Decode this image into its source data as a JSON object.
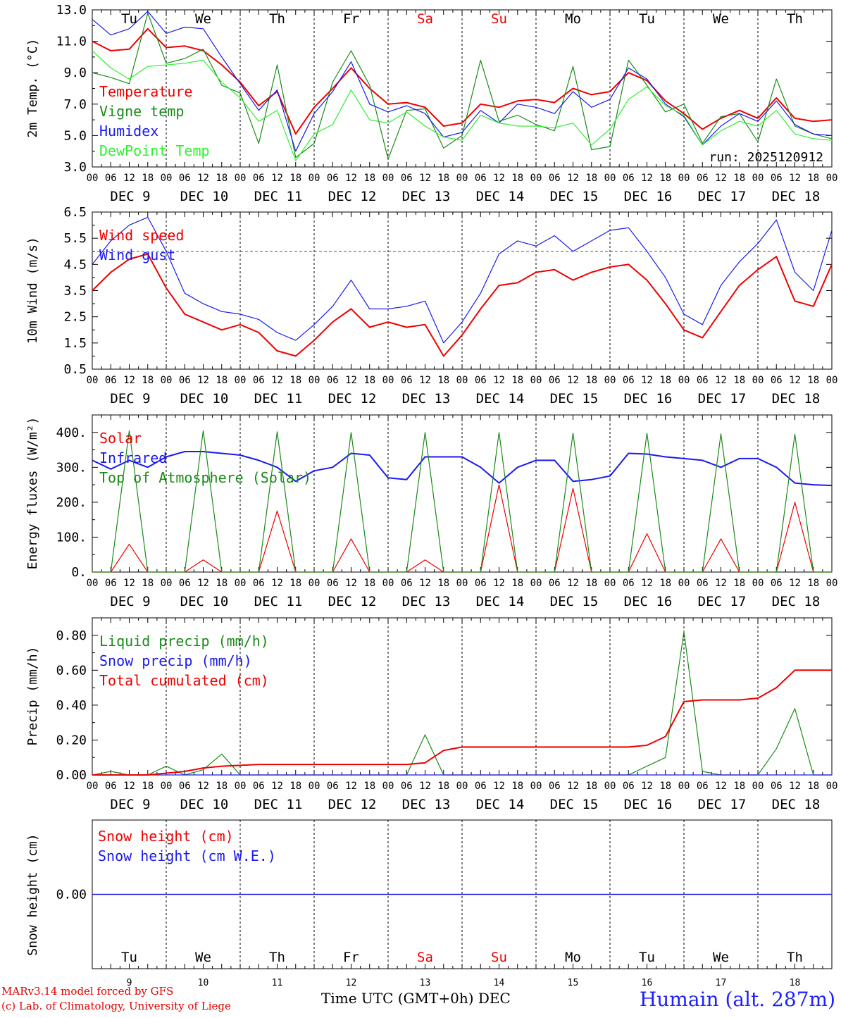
{
  "run_label": "run: 2025120912",
  "day_abbrs": [
    "Tu",
    "We",
    "Th",
    "Fr",
    "Sa",
    "Su",
    "Mo",
    "Tu",
    "We",
    "Th"
  ],
  "weekend_days": [
    4,
    5
  ],
  "hour_ticks": [
    "00",
    "06",
    "12",
    "18"
  ],
  "end_hour_tick": "00",
  "dates": [
    "DEC 9",
    "DEC 10",
    "DEC 11",
    "DEC 12",
    "DEC 13",
    "DEC 14",
    "DEC 15",
    "DEC 16",
    "DEC 17",
    "DEC 18"
  ],
  "date_numbers": [
    "9",
    "10",
    "11",
    "12",
    "13",
    "14",
    "15",
    "16",
    "17",
    "18"
  ],
  "xaxis_title": "Time UTC (GMT+0h)",
  "xaxis_month": "DEC",
  "credit_line1": "MARv3.14 model forced by GFS",
  "credit_line2": "(c) Lab. of Climatology, University of Liege",
  "station": "Humain (alt. 287m)",
  "colors": {
    "red": "#ee0000",
    "green": "#1a8a1a",
    "blue": "#1a1aee",
    "lightgreen": "#33ee33",
    "weekend": "#ee0000"
  },
  "chart_data": [
    {
      "type": "line",
      "ylabel": "2m Temp. (°C)",
      "ylim": [
        3,
        13
      ],
      "yticks": [
        "3.0",
        "5.0",
        "7.0",
        "9.0",
        "11.0",
        "13.0"
      ],
      "x_hours": [
        0,
        6,
        12,
        18,
        24,
        30,
        36,
        42,
        48,
        54,
        60,
        66,
        72,
        78,
        84,
        90,
        96,
        102,
        108,
        114,
        120,
        126,
        132,
        138,
        144,
        150,
        156,
        162,
        168,
        174,
        180,
        186,
        192,
        198,
        204,
        210,
        216,
        222,
        228,
        234,
        240
      ],
      "series": [
        {
          "name": "Temperature",
          "color": "red",
          "values": [
            11.0,
            10.4,
            10.5,
            11.8,
            10.6,
            10.7,
            10.4,
            9.5,
            8.4,
            6.9,
            7.8,
            5.1,
            6.8,
            8.0,
            9.3,
            8.0,
            7.0,
            7.1,
            6.8,
            5.6,
            5.8,
            7.0,
            6.8,
            7.2,
            7.3,
            7.1,
            8.0,
            7.6,
            7.8,
            9.0,
            8.5,
            7.2,
            6.4,
            5.4,
            6.1,
            6.6,
            6.1,
            7.4,
            6.1,
            5.9,
            6.0
          ]
        },
        {
          "name": "Vigne temp",
          "color": "green",
          "values": [
            9.0,
            8.7,
            8.3,
            12.8,
            9.6,
            9.9,
            10.5,
            8.2,
            7.7,
            4.5,
            9.5,
            3.6,
            4.5,
            8.4,
            10.4,
            8.2,
            3.5,
            6.6,
            6.7,
            4.2,
            5.0,
            9.8,
            5.9,
            6.3,
            5.7,
            5.3,
            9.4,
            4.1,
            4.3,
            9.8,
            8.2,
            6.5,
            7.0,
            4.5,
            6.2,
            6.4,
            4.6,
            8.6,
            5.6,
            5.1,
            4.8
          ]
        },
        {
          "name": "Humidex",
          "color": "blue",
          "values": [
            12.4,
            11.4,
            11.8,
            12.9,
            11.5,
            11.9,
            11.8,
            10.0,
            8.3,
            6.6,
            7.9,
            4.0,
            6.4,
            7.8,
            9.7,
            7.0,
            6.5,
            6.9,
            6.4,
            4.9,
            5.2,
            6.6,
            5.8,
            7.0,
            6.8,
            6.4,
            7.8,
            6.8,
            7.3,
            9.3,
            8.6,
            7.0,
            6.2,
            4.4,
            5.6,
            6.4,
            5.9,
            7.2,
            5.7,
            5.1,
            5.0
          ]
        },
        {
          "name": "DewPoint Temp",
          "color": "lightgreen",
          "values": [
            10.4,
            9.3,
            8.6,
            9.4,
            9.5,
            9.6,
            9.8,
            8.4,
            7.4,
            5.9,
            6.6,
            3.4,
            5.1,
            5.7,
            7.9,
            6.0,
            5.8,
            6.5,
            5.6,
            4.9,
            4.7,
            6.3,
            5.8,
            5.6,
            5.6,
            5.5,
            5.8,
            4.4,
            5.4,
            7.3,
            8.1,
            6.9,
            6.3,
            4.4,
            5.3,
            5.9,
            5.6,
            6.6,
            5.1,
            4.8,
            4.7
          ]
        }
      ]
    },
    {
      "type": "line",
      "ylabel": "10m Wind (m/s)",
      "ylim": [
        0.5,
        6.5
      ],
      "yticks": [
        "0.5",
        "1.5",
        "2.5",
        "3.5",
        "4.5",
        "5.5",
        "6.5"
      ],
      "reference_line": 5.0,
      "x_hours": [
        0,
        6,
        12,
        18,
        24,
        30,
        36,
        42,
        48,
        54,
        60,
        66,
        72,
        78,
        84,
        90,
        96,
        102,
        108,
        114,
        120,
        126,
        132,
        138,
        144,
        150,
        156,
        162,
        168,
        174,
        180,
        186,
        192,
        198,
        204,
        210,
        216,
        222,
        228,
        234,
        240
      ],
      "series": [
        {
          "name": "Wind speed",
          "color": "red",
          "values": [
            3.5,
            4.2,
            4.7,
            4.9,
            3.6,
            2.6,
            2.3,
            2.0,
            2.2,
            1.9,
            1.2,
            1.0,
            1.6,
            2.3,
            2.8,
            2.1,
            2.3,
            2.1,
            2.2,
            1.0,
            1.8,
            2.8,
            3.7,
            3.8,
            4.2,
            4.3,
            3.9,
            4.2,
            4.4,
            4.5,
            3.9,
            3.0,
            2.0,
            1.7,
            2.7,
            3.7,
            4.3,
            4.8,
            3.1,
            2.9,
            4.5
          ]
        },
        {
          "name": "Wind gust",
          "color": "blue",
          "values": [
            4.5,
            5.4,
            6.0,
            6.3,
            5.0,
            3.4,
            3.0,
            2.7,
            2.6,
            2.4,
            1.9,
            1.6,
            2.2,
            2.9,
            3.9,
            2.8,
            2.8,
            2.9,
            3.1,
            1.5,
            2.3,
            3.4,
            4.9,
            5.4,
            5.2,
            5.6,
            5.0,
            5.4,
            5.8,
            5.9,
            5.0,
            4.0,
            2.6,
            2.2,
            3.7,
            4.6,
            5.3,
            6.2,
            4.2,
            3.5,
            5.8
          ]
        }
      ]
    },
    {
      "type": "line",
      "ylabel": "Energy fluxes (W/m²)",
      "ylim": [
        0,
        450
      ],
      "yticks": [
        "0.",
        "100.",
        "200.",
        "300.",
        "400."
      ],
      "x_hours": [
        0,
        6,
        12,
        18,
        24,
        30,
        36,
        42,
        48,
        54,
        60,
        66,
        72,
        78,
        84,
        90,
        96,
        102,
        108,
        114,
        120,
        126,
        132,
        138,
        144,
        150,
        156,
        162,
        168,
        174,
        180,
        186,
        192,
        198,
        204,
        210,
        216,
        222,
        228,
        234,
        240
      ],
      "series": [
        {
          "name": "Solar",
          "color": "red",
          "values": [
            0,
            0,
            80,
            0,
            0,
            0,
            35,
            0,
            0,
            0,
            175,
            0,
            0,
            0,
            95,
            0,
            0,
            0,
            35,
            0,
            0,
            0,
            250,
            0,
            0,
            0,
            240,
            0,
            0,
            0,
            110,
            0,
            0,
            0,
            95,
            0,
            0,
            0,
            200,
            0,
            0
          ]
        },
        {
          "name": "Infrared",
          "color": "blue",
          "values": [
            320,
            295,
            320,
            300,
            330,
            345,
            345,
            340,
            335,
            320,
            300,
            260,
            290,
            300,
            340,
            335,
            270,
            265,
            330,
            330,
            330,
            300,
            255,
            300,
            320,
            320,
            260,
            265,
            275,
            340,
            338,
            330,
            325,
            320,
            300,
            325,
            325,
            300,
            255,
            250,
            248
          ]
        },
        {
          "name": "Top of Atmosphere (Solar)",
          "color": "green",
          "values": [
            0,
            0,
            405,
            0,
            0,
            0,
            405,
            0,
            0,
            0,
            402,
            0,
            0,
            0,
            400,
            0,
            0,
            0,
            400,
            0,
            0,
            0,
            400,
            0,
            0,
            0,
            398,
            0,
            0,
            0,
            398,
            0,
            0,
            0,
            396,
            0,
            0,
            0,
            395,
            0,
            0
          ]
        }
      ]
    },
    {
      "type": "line",
      "ylabel": "Precip (mm/h)",
      "ylim": [
        0,
        0.9
      ],
      "yticks": [
        "0.00",
        "0.20",
        "0.40",
        "0.60",
        "0.80"
      ],
      "x_hours": [
        0,
        6,
        12,
        18,
        24,
        30,
        36,
        42,
        48,
        54,
        60,
        66,
        72,
        78,
        84,
        90,
        96,
        102,
        108,
        114,
        120,
        126,
        132,
        138,
        144,
        150,
        156,
        162,
        168,
        174,
        180,
        186,
        192,
        198,
        204,
        210,
        216,
        222,
        228,
        234,
        240
      ],
      "series": [
        {
          "name": "Liquid precip (mm/h)",
          "color": "green",
          "values": [
            0,
            0.02,
            0,
            0,
            0.05,
            0,
            0.03,
            0.12,
            0,
            0,
            0,
            0,
            0,
            0,
            0,
            0,
            0,
            0,
            0.23,
            0,
            0,
            0,
            0,
            0,
            0,
            0,
            0,
            0,
            0,
            0,
            0.05,
            0.1,
            0.82,
            0.02,
            0,
            0,
            0,
            0.15,
            0.38,
            0,
            0
          ]
        },
        {
          "name": "Snow precip (mm/h)",
          "color": "blue",
          "values": [
            0,
            0,
            0,
            0,
            0,
            0,
            0,
            0,
            0,
            0,
            0,
            0,
            0,
            0,
            0,
            0,
            0,
            0,
            0,
            0,
            0,
            0,
            0,
            0,
            0,
            0,
            0,
            0,
            0,
            0,
            0,
            0,
            0,
            0,
            0,
            0,
            0,
            0,
            0,
            0,
            0
          ]
        },
        {
          "name": "Total cumulated (cm)",
          "color": "red",
          "values": [
            0,
            0,
            0,
            0,
            0.01,
            0.02,
            0.04,
            0.05,
            0.055,
            0.06,
            0.06,
            0.06,
            0.06,
            0.06,
            0.06,
            0.06,
            0.06,
            0.06,
            0.07,
            0.14,
            0.16,
            0.16,
            0.16,
            0.16,
            0.16,
            0.16,
            0.16,
            0.16,
            0.16,
            0.16,
            0.17,
            0.22,
            0.42,
            0.43,
            0.43,
            0.43,
            0.44,
            0.5,
            0.6,
            0.6,
            0.6
          ]
        }
      ]
    },
    {
      "type": "line",
      "ylabel": "Snow height (cm)",
      "ylim": [
        -1,
        1
      ],
      "yticks": [
        "0.00"
      ],
      "x_hours": [
        0,
        240
      ],
      "series": [
        {
          "name": "Snow height (cm)",
          "color": "red",
          "values": [
            0,
            0
          ]
        },
        {
          "name": "Snow height (cm W.E.)",
          "color": "blue",
          "values": [
            0,
            0
          ]
        }
      ]
    }
  ]
}
